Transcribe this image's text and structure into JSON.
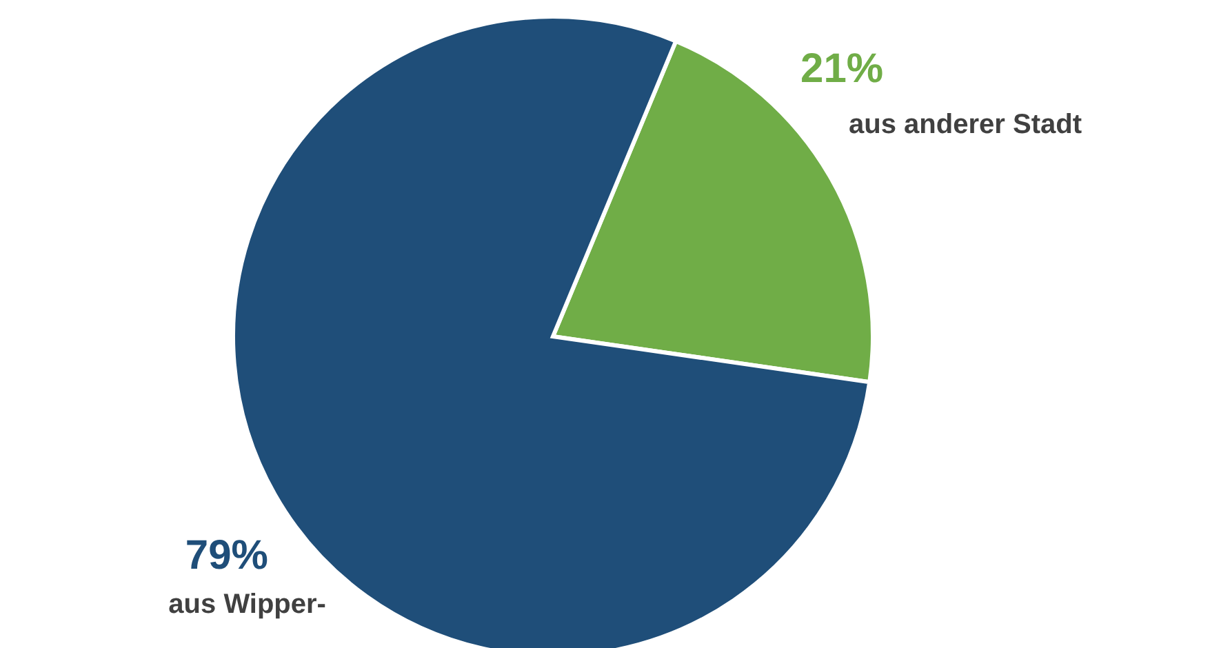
{
  "chart_data": {
    "type": "pie",
    "categories": [
      "aus anderer Stadt",
      "aus Wipper-"
    ],
    "values": [
      21,
      79
    ],
    "value_labels": [
      "21%",
      "79%"
    ],
    "colors": [
      "#70ad47",
      "#1f4e79"
    ]
  }
}
